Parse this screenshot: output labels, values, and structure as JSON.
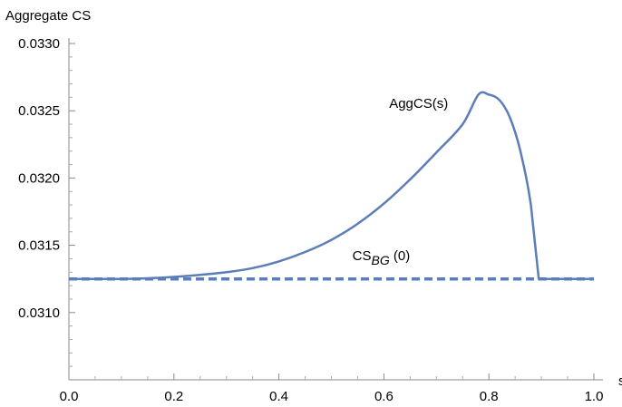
{
  "chart_data": {
    "type": "line",
    "ylabel": "Aggregate CS",
    "xlabel": "s",
    "xlim": [
      0.0,
      1.0
    ],
    "ylim": [
      0.0305,
      0.033
    ],
    "x_ticks": [
      "0.0",
      "0.2",
      "0.4",
      "0.6",
      "0.8",
      "1.0"
    ],
    "y_ticks": [
      "0.0310",
      "0.0315",
      "0.0320",
      "0.0325",
      "0.0330"
    ],
    "grid": false,
    "legend": "none",
    "series": [
      {
        "style": "solid",
        "color": "#5b7db8",
        "x": [
          0.0,
          0.05,
          0.1,
          0.15,
          0.2,
          0.25,
          0.3,
          0.35,
          0.4,
          0.45,
          0.5,
          0.55,
          0.6,
          0.65,
          0.7,
          0.75,
          0.78,
          0.8,
          0.82,
          0.84,
          0.86,
          0.88,
          0.895,
          1.0
        ],
        "y": [
          0.03125,
          0.03125,
          0.03125,
          0.031255,
          0.031265,
          0.03128,
          0.0313,
          0.03133,
          0.03138,
          0.03145,
          0.03154,
          0.03166,
          0.03181,
          0.03199,
          0.03219,
          0.0324,
          0.03262,
          0.03262,
          0.03258,
          0.03245,
          0.0322,
          0.0318,
          0.03125,
          0.03125
        ]
      },
      {
        "style": "dashed",
        "color": "#5b7db8",
        "x": [
          0.0,
          1.0
        ],
        "y": [
          0.03125,
          0.03125
        ]
      }
    ],
    "annotations": [
      {
        "text_main": "AggCS(s)",
        "x": 0.61,
        "y": 0.03252
      },
      {
        "text_main": "CS",
        "text_sub": "BG",
        "text_tail": " (0)",
        "x": 0.54,
        "y": 0.03139
      }
    ]
  }
}
